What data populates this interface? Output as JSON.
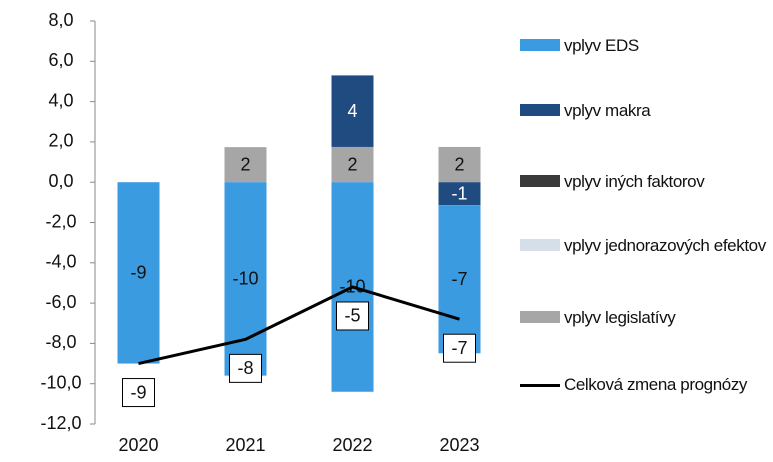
{
  "chart_data": {
    "type": "bar",
    "stacked": true,
    "categories": [
      "2020",
      "2021",
      "2022",
      "2023"
    ],
    "ylim": [
      -12,
      8
    ],
    "yticks": [
      {
        "value": -12,
        "label": "-12,0"
      },
      {
        "value": -10,
        "label": "-10,0"
      },
      {
        "value": -8,
        "label": "-8,0"
      },
      {
        "value": -6,
        "label": "-6,0"
      },
      {
        "value": -4,
        "label": "-4,0"
      },
      {
        "value": -2,
        "label": "-2,0"
      },
      {
        "value": 0,
        "label": "0,0"
      },
      {
        "value": 2,
        "label": "2,0"
      },
      {
        "value": 4,
        "label": "4,0"
      },
      {
        "value": 6,
        "label": "6,0"
      },
      {
        "value": 8,
        "label": "8,0"
      }
    ],
    "series": [
      {
        "name": "vplyv EDS",
        "color": "#3a9be0",
        "values": [
          -9,
          -9.6,
          -10.4,
          -7.35
        ],
        "value_labels": [
          "-9",
          "-10",
          "-10",
          "-7"
        ]
      },
      {
        "name": "vplyv makra",
        "color": "#1f4b80",
        "values": [
          null,
          null,
          3.55,
          -1.14
        ],
        "value_labels": [
          null,
          null,
          "4",
          "-1"
        ]
      },
      {
        "name": "vplyv iných faktorov",
        "color": "#3a3a3a",
        "values": [
          null,
          null,
          null,
          null
        ]
      },
      {
        "name": "vplyv jednorazových efektov",
        "color": "#d5dee9",
        "values": [
          null,
          null,
          null,
          null
        ]
      },
      {
        "name": "vplyv legislatívy",
        "color": "#a6a6a6",
        "values": [
          null,
          1.74,
          1.75,
          1.75
        ],
        "value_labels": [
          null,
          "2",
          "2",
          "2"
        ]
      },
      {
        "name": "Celková zmena prognózy",
        "type": "line",
        "color": "#000000",
        "values": [
          -9,
          -7.8,
          -5.2,
          -6.8
        ],
        "value_labels": [
          "-9",
          "-8",
          "-5",
          "-7"
        ]
      }
    ]
  }
}
